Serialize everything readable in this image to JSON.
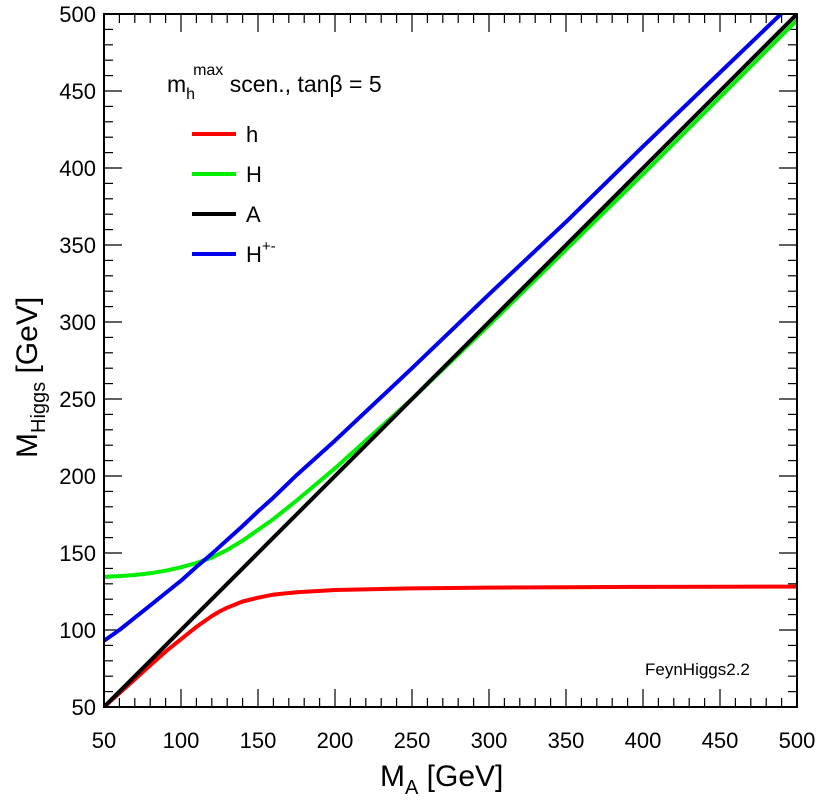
{
  "chart_data": {
    "type": "line",
    "xlabel": {
      "main": "M",
      "sub": "A",
      "unit": " [GeV]"
    },
    "ylabel": {
      "main": "M",
      "sub": "Higgs",
      "unit": " [GeV]"
    },
    "xlim": [
      50,
      500
    ],
    "ylim": [
      50,
      500
    ],
    "x_ticks": [
      "50",
      "100",
      "150",
      "200",
      "250",
      "300",
      "350",
      "400",
      "450",
      "500"
    ],
    "y_ticks": [
      "50",
      "100",
      "150",
      "200",
      "250",
      "300",
      "350",
      "400",
      "450",
      "500"
    ],
    "annotation": {
      "base": "m",
      "sub": "h",
      "sup": "max",
      "rest": " scen., tanβ = 5"
    },
    "credit": "FeynHiggs2.2",
    "legend_position": "top-left",
    "x": [
      50,
      60,
      70,
      80,
      90,
      100,
      110,
      120,
      125,
      130,
      140,
      150,
      160,
      175,
      200,
      250,
      300,
      350,
      400,
      450,
      500
    ],
    "series": [
      {
        "name": "h",
        "color": "#ff0000",
        "values": [
          50,
          59,
          68,
          77,
          86,
          94,
          102,
          109,
          112,
          114.5,
          118.5,
          121,
          123,
          124.5,
          126,
          127,
          127.5,
          127.8,
          128,
          128.1,
          128.2
        ]
      },
      {
        "name": "H",
        "color": "#00ee00",
        "values": [
          134.5,
          135,
          135.7,
          136.8,
          138.5,
          140.7,
          143.5,
          147,
          149.5,
          152,
          158,
          165,
          172,
          184,
          205,
          250,
          298,
          347,
          396,
          446,
          496
        ]
      },
      {
        "name": "A",
        "color": "#000000",
        "values": [
          50,
          60,
          70,
          80,
          90,
          100,
          110,
          120,
          125,
          130,
          140,
          150,
          160,
          175,
          200,
          250,
          300,
          350,
          400,
          450,
          500
        ]
      },
      {
        "name": "H",
        "name_sup": "+-",
        "color": "#0000ee",
        "values": [
          93,
          100,
          108,
          116,
          124,
          132,
          141,
          149.5,
          154,
          158.5,
          167.5,
          177,
          186,
          200.5,
          223,
          270,
          318,
          365,
          414,
          462,
          510
        ]
      }
    ]
  }
}
